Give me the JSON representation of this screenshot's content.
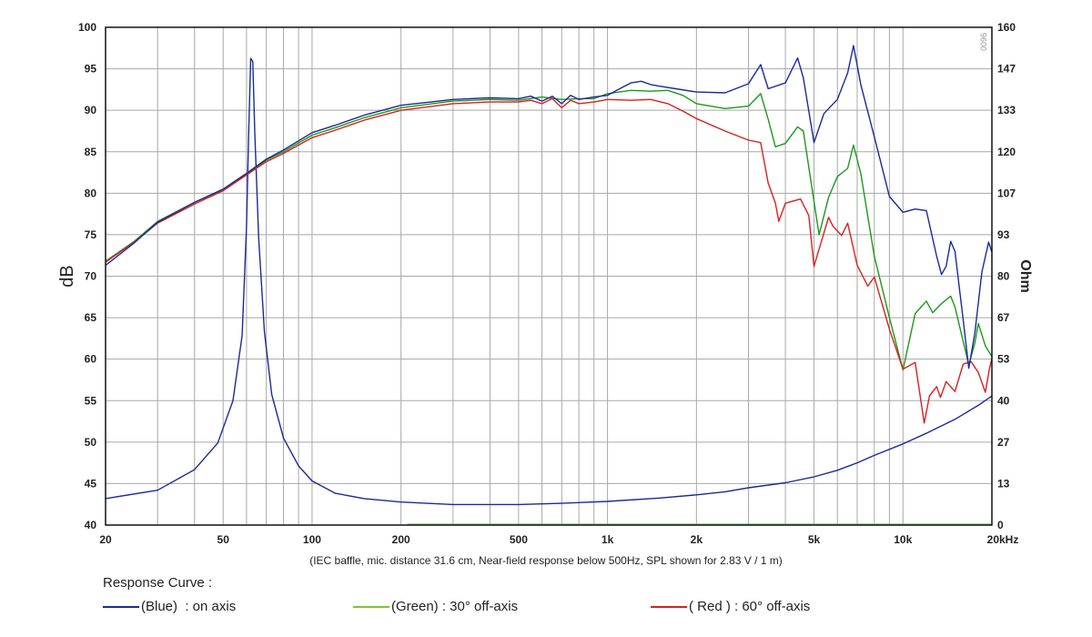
{
  "chart_data": {
    "type": "line",
    "xlabel": "",
    "x_scale": "log",
    "xlim": [
      20,
      20000
    ],
    "x_ticks": [
      {
        "value": 20,
        "label": "20"
      },
      {
        "value": 50,
        "label": "50"
      },
      {
        "value": 100,
        "label": "100"
      },
      {
        "value": 200,
        "label": "200"
      },
      {
        "value": 500,
        "label": "500"
      },
      {
        "value": 1000,
        "label": "1k"
      },
      {
        "value": 2000,
        "label": "2k"
      },
      {
        "value": 5000,
        "label": "5k"
      },
      {
        "value": 10000,
        "label": "10k"
      },
      {
        "value": 20000,
        "label": "20kHz"
      }
    ],
    "ylabel": "dB",
    "ylim": [
      40,
      100
    ],
    "y_ticks": [
      "40",
      "45",
      "50",
      "55",
      "60",
      "65",
      "70",
      "75",
      "80",
      "85",
      "90",
      "95",
      "100"
    ],
    "y2label": "Ohm",
    "y2lim": [
      0,
      160
    ],
    "y2_ticks": [
      "0",
      "13",
      "27",
      "40",
      "53",
      "67",
      "80",
      "93",
      "107",
      "120",
      "133",
      "147",
      "160"
    ],
    "grid": true,
    "note": "(IEC baffle, mic. distance 31.6 cm, Near-field response below 500Hz, SPL shown for 2.83 V / 1 m)",
    "watermark": "0096",
    "series": [
      {
        "name": "(Blue)  : on axis",
        "color": "#1a2a9a",
        "axis": "dB",
        "points": [
          [
            20,
            71.3
          ],
          [
            25,
            74
          ],
          [
            30,
            76.5
          ],
          [
            40,
            78.9
          ],
          [
            50,
            80.5
          ],
          [
            60,
            82.4
          ],
          [
            70,
            84.1
          ],
          [
            80,
            85.2
          ],
          [
            100,
            87.3
          ],
          [
            120,
            88.2
          ],
          [
            150,
            89.4
          ],
          [
            200,
            90.6
          ],
          [
            300,
            91.3
          ],
          [
            400,
            91.5
          ],
          [
            500,
            91.4
          ],
          [
            550,
            91.7
          ],
          [
            600,
            91.1
          ],
          [
            650,
            91.7
          ],
          [
            700,
            90.8
          ],
          [
            750,
            91.8
          ],
          [
            800,
            91.3
          ],
          [
            900,
            91.6
          ],
          [
            1000,
            91.8
          ],
          [
            1100,
            92.6
          ],
          [
            1200,
            93.3
          ],
          [
            1300,
            93.5
          ],
          [
            1400,
            93.1
          ],
          [
            1500,
            92.9
          ],
          [
            1700,
            92.6
          ],
          [
            2000,
            92.2
          ],
          [
            2500,
            92.1
          ],
          [
            3000,
            93.2
          ],
          [
            3300,
            95.5
          ],
          [
            3500,
            92.6
          ],
          [
            4000,
            93.3
          ],
          [
            4400,
            96.3
          ],
          [
            4600,
            93.9
          ],
          [
            5000,
            86.1
          ],
          [
            5400,
            89.6
          ],
          [
            6000,
            91.3
          ],
          [
            6500,
            94.5
          ],
          [
            6800,
            97.8
          ],
          [
            7200,
            93.1
          ],
          [
            8000,
            86.8
          ],
          [
            9000,
            79.6
          ],
          [
            10000,
            77.7
          ],
          [
            11000,
            78.1
          ],
          [
            12000,
            77.9
          ],
          [
            13000,
            72.4
          ],
          [
            13500,
            70.2
          ],
          [
            14000,
            71.2
          ],
          [
            14500,
            74.2
          ],
          [
            15000,
            73.0
          ],
          [
            16000,
            64.7
          ],
          [
            16700,
            58.9
          ],
          [
            17500,
            63.1
          ],
          [
            18500,
            70.5
          ],
          [
            19500,
            74.1
          ],
          [
            20000,
            72.9
          ]
        ]
      },
      {
        "name": "(Green) : 30° off-axis",
        "color": "#1a9a1a",
        "axis": "dB",
        "points": [
          [
            20,
            71.8
          ],
          [
            25,
            74.2
          ],
          [
            30,
            76.6
          ],
          [
            40,
            78.9
          ],
          [
            50,
            80.4
          ],
          [
            60,
            82.3
          ],
          [
            70,
            84.0
          ],
          [
            80,
            85.0
          ],
          [
            100,
            87.0
          ],
          [
            120,
            87.9
          ],
          [
            150,
            89.1
          ],
          [
            200,
            90.3
          ],
          [
            300,
            91.1
          ],
          [
            400,
            91.3
          ],
          [
            500,
            91.2
          ],
          [
            600,
            91.6
          ],
          [
            700,
            91.3
          ],
          [
            800,
            91.4
          ],
          [
            900,
            91.4
          ],
          [
            1000,
            92.0
          ],
          [
            1200,
            92.4
          ],
          [
            1400,
            92.3
          ],
          [
            1600,
            92.4
          ],
          [
            1800,
            91.8
          ],
          [
            2000,
            90.8
          ],
          [
            2500,
            90.2
          ],
          [
            3000,
            90.5
          ],
          [
            3300,
            92.0
          ],
          [
            3500,
            88.9
          ],
          [
            3700,
            85.6
          ],
          [
            4000,
            86.0
          ],
          [
            4400,
            88.0
          ],
          [
            4600,
            87.5
          ],
          [
            5000,
            79.0
          ],
          [
            5200,
            75.0
          ],
          [
            5600,
            79.5
          ],
          [
            6000,
            82.0
          ],
          [
            6500,
            83.0
          ],
          [
            6800,
            85.8
          ],
          [
            7200,
            82.4
          ],
          [
            8000,
            72.4
          ],
          [
            9000,
            65.0
          ],
          [
            10000,
            58.7
          ],
          [
            11000,
            65.5
          ],
          [
            12000,
            67.0
          ],
          [
            12600,
            65.6
          ],
          [
            13500,
            66.7
          ],
          [
            14500,
            67.6
          ],
          [
            15000,
            66.3
          ],
          [
            16700,
            59.3
          ],
          [
            17500,
            61.9
          ],
          [
            18000,
            64.3
          ],
          [
            19000,
            61.6
          ],
          [
            20000,
            60.3
          ]
        ]
      },
      {
        "name": "( Red ) : 60° off-axis",
        "color": "#d82020",
        "axis": "dB",
        "points": [
          [
            20,
            71.7
          ],
          [
            25,
            74.1
          ],
          [
            30,
            76.4
          ],
          [
            40,
            78.7
          ],
          [
            50,
            80.3
          ],
          [
            60,
            82.2
          ],
          [
            70,
            83.8
          ],
          [
            80,
            84.8
          ],
          [
            100,
            86.7
          ],
          [
            120,
            87.6
          ],
          [
            150,
            88.8
          ],
          [
            200,
            90.0
          ],
          [
            300,
            90.8
          ],
          [
            400,
            91.0
          ],
          [
            500,
            91.0
          ],
          [
            550,
            91.2
          ],
          [
            600,
            90.8
          ],
          [
            650,
            91.4
          ],
          [
            700,
            90.3
          ],
          [
            750,
            91.2
          ],
          [
            800,
            90.8
          ],
          [
            900,
            91.0
          ],
          [
            1000,
            91.3
          ],
          [
            1200,
            91.2
          ],
          [
            1400,
            91.3
          ],
          [
            1600,
            90.8
          ],
          [
            1800,
            89.9
          ],
          [
            2000,
            89.0
          ],
          [
            2500,
            87.5
          ],
          [
            3000,
            86.4
          ],
          [
            3300,
            86.1
          ],
          [
            3500,
            81.2
          ],
          [
            3700,
            78.8
          ],
          [
            3800,
            76.6
          ],
          [
            4000,
            78.8
          ],
          [
            4500,
            79.3
          ],
          [
            4800,
            77.3
          ],
          [
            5000,
            71.2
          ],
          [
            5400,
            75.2
          ],
          [
            5600,
            77.1
          ],
          [
            5800,
            76.0
          ],
          [
            6200,
            74.9
          ],
          [
            6500,
            76.4
          ],
          [
            7000,
            71.3
          ],
          [
            7600,
            68.8
          ],
          [
            8000,
            69.9
          ],
          [
            9000,
            63.6
          ],
          [
            10000,
            58.8
          ],
          [
            11000,
            59.6
          ],
          [
            11800,
            52.3
          ],
          [
            12300,
            55.6
          ],
          [
            13000,
            56.7
          ],
          [
            13400,
            55.4
          ],
          [
            14000,
            57.3
          ],
          [
            15000,
            56.1
          ],
          [
            16000,
            59.4
          ],
          [
            17000,
            59.7
          ],
          [
            18000,
            58.4
          ],
          [
            19000,
            56.0
          ],
          [
            19600,
            58.8
          ],
          [
            20000,
            60.1
          ]
        ]
      },
      {
        "name": "Impedance",
        "color": "#1a2a9a",
        "axis": "Ohm",
        "points": [
          [
            20,
            8.5
          ],
          [
            30,
            11.2
          ],
          [
            40,
            17.8
          ],
          [
            48,
            26.4
          ],
          [
            54,
            40
          ],
          [
            58,
            61
          ],
          [
            60,
            96
          ],
          [
            61,
            125
          ],
          [
            62,
            150
          ],
          [
            63,
            149
          ],
          [
            64,
            126
          ],
          [
            66,
            92
          ],
          [
            69,
            62
          ],
          [
            73,
            42
          ],
          [
            80,
            28
          ],
          [
            90,
            19
          ],
          [
            100,
            14.2
          ],
          [
            120,
            10.2
          ],
          [
            150,
            8.5
          ],
          [
            200,
            7.4
          ],
          [
            300,
            6.6
          ],
          [
            500,
            6.6
          ],
          [
            700,
            7.0
          ],
          [
            1000,
            7.6
          ],
          [
            1500,
            8.7
          ],
          [
            2000,
            9.7
          ],
          [
            2500,
            10.7
          ],
          [
            3000,
            12.0
          ],
          [
            4000,
            13.6
          ],
          [
            5000,
            15.5
          ],
          [
            6000,
            17.6
          ],
          [
            7000,
            20.0
          ],
          [
            8000,
            22.4
          ],
          [
            10000,
            26.1
          ],
          [
            12000,
            29.5
          ],
          [
            15000,
            34.0
          ],
          [
            18000,
            38.5
          ],
          [
            20000,
            41.5
          ]
        ]
      },
      {
        "name": "",
        "color": "#66cc66",
        "axis": "dB",
        "points": [
          [
            210,
            40.1
          ],
          [
            20000,
            40.1
          ]
        ]
      }
    ]
  },
  "legend": {
    "title": "Response Curve :",
    "items": [
      {
        "label": "(Blue)  : on axis",
        "color": "#1a2a9a"
      },
      {
        "label": "(Green) : 30° off-axis",
        "color": "#7ec830"
      },
      {
        "label": "( Red ) : 60° off-axis",
        "color": "#d82020"
      }
    ]
  }
}
